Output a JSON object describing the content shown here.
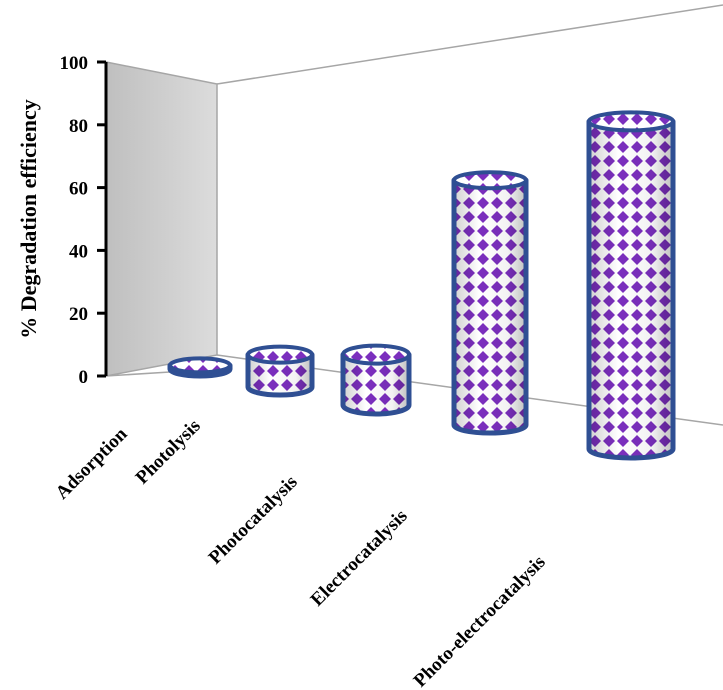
{
  "chart_data": {
    "type": "bar",
    "style": "3d-cylinder",
    "title": "",
    "xlabel": "",
    "ylabel": "% Degradation efficiency",
    "ylim": [
      0,
      100
    ],
    "yticks": [
      0,
      20,
      40,
      60,
      80,
      100
    ],
    "categories": [
      "Adsorption",
      "Photolysis",
      "Photocatalysis",
      "Electrocatalysis",
      "Photo-electrocatalysis"
    ],
    "values": [
      1,
      9,
      14,
      68,
      91
    ],
    "grid": false,
    "legend": "none",
    "colors": {
      "bar_fill": "#ffffff",
      "bar_pattern": "#7b2fbe",
      "bar_outline": "#2f4f93",
      "back_wall": "#d0d0d0",
      "floor_line": "#a6a6a6"
    }
  }
}
